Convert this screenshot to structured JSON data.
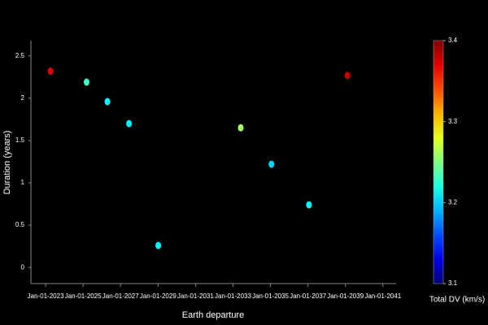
{
  "chart_data": {
    "type": "scatter",
    "xlabel": "Earth departure",
    "ylabel": "Duration (years)",
    "x": [
      "2023-04-05",
      "2025-03-10",
      "2026-04-20",
      "2027-06-15",
      "2029-01-05",
      "2033-06-01",
      "2035-01-20",
      "2037-01-20",
      "2039-02-10"
    ],
    "values": [
      2.32,
      2.19,
      1.96,
      1.7,
      0.26,
      1.65,
      1.22,
      0.74,
      2.27
    ],
    "color_values": [
      3.37,
      3.23,
      3.21,
      3.21,
      3.21,
      3.26,
      3.2,
      3.21,
      3.38
    ],
    "colormap": "jet",
    "colorbar_label": "Total DV (km/s)",
    "clim": [
      3.1,
      3.4
    ],
    "cticks": [
      3.1,
      3.2,
      3.3,
      3.4
    ],
    "xlim": [
      "2022-02-01",
      "2041-09-15"
    ],
    "xticks": [
      {
        "value": "2023-01-01",
        "label": "Jan-01-2023"
      },
      {
        "value": "2025-01-01",
        "label": "Jan-01-2025"
      },
      {
        "value": "2027-01-01",
        "label": "Jan-01-2027"
      },
      {
        "value": "2029-01-01",
        "label": "Jan-01-2029"
      },
      {
        "value": "2031-01-01",
        "label": "Jan-01-2031"
      },
      {
        "value": "2033-01-01",
        "label": "Jan-01-2033"
      },
      {
        "value": "2035-01-01",
        "label": "Jan-01-2035"
      },
      {
        "value": "2037-01-01",
        "label": "Jan-01-2037"
      },
      {
        "value": "2039-01-01",
        "label": "Jan-01-2039"
      },
      {
        "value": "2041-01-01",
        "label": "Jan-01-2041"
      }
    ],
    "ylim": [
      -0.19,
      2.68
    ],
    "yticks": [
      0,
      0.5,
      1,
      1.5,
      2,
      2.5
    ]
  }
}
